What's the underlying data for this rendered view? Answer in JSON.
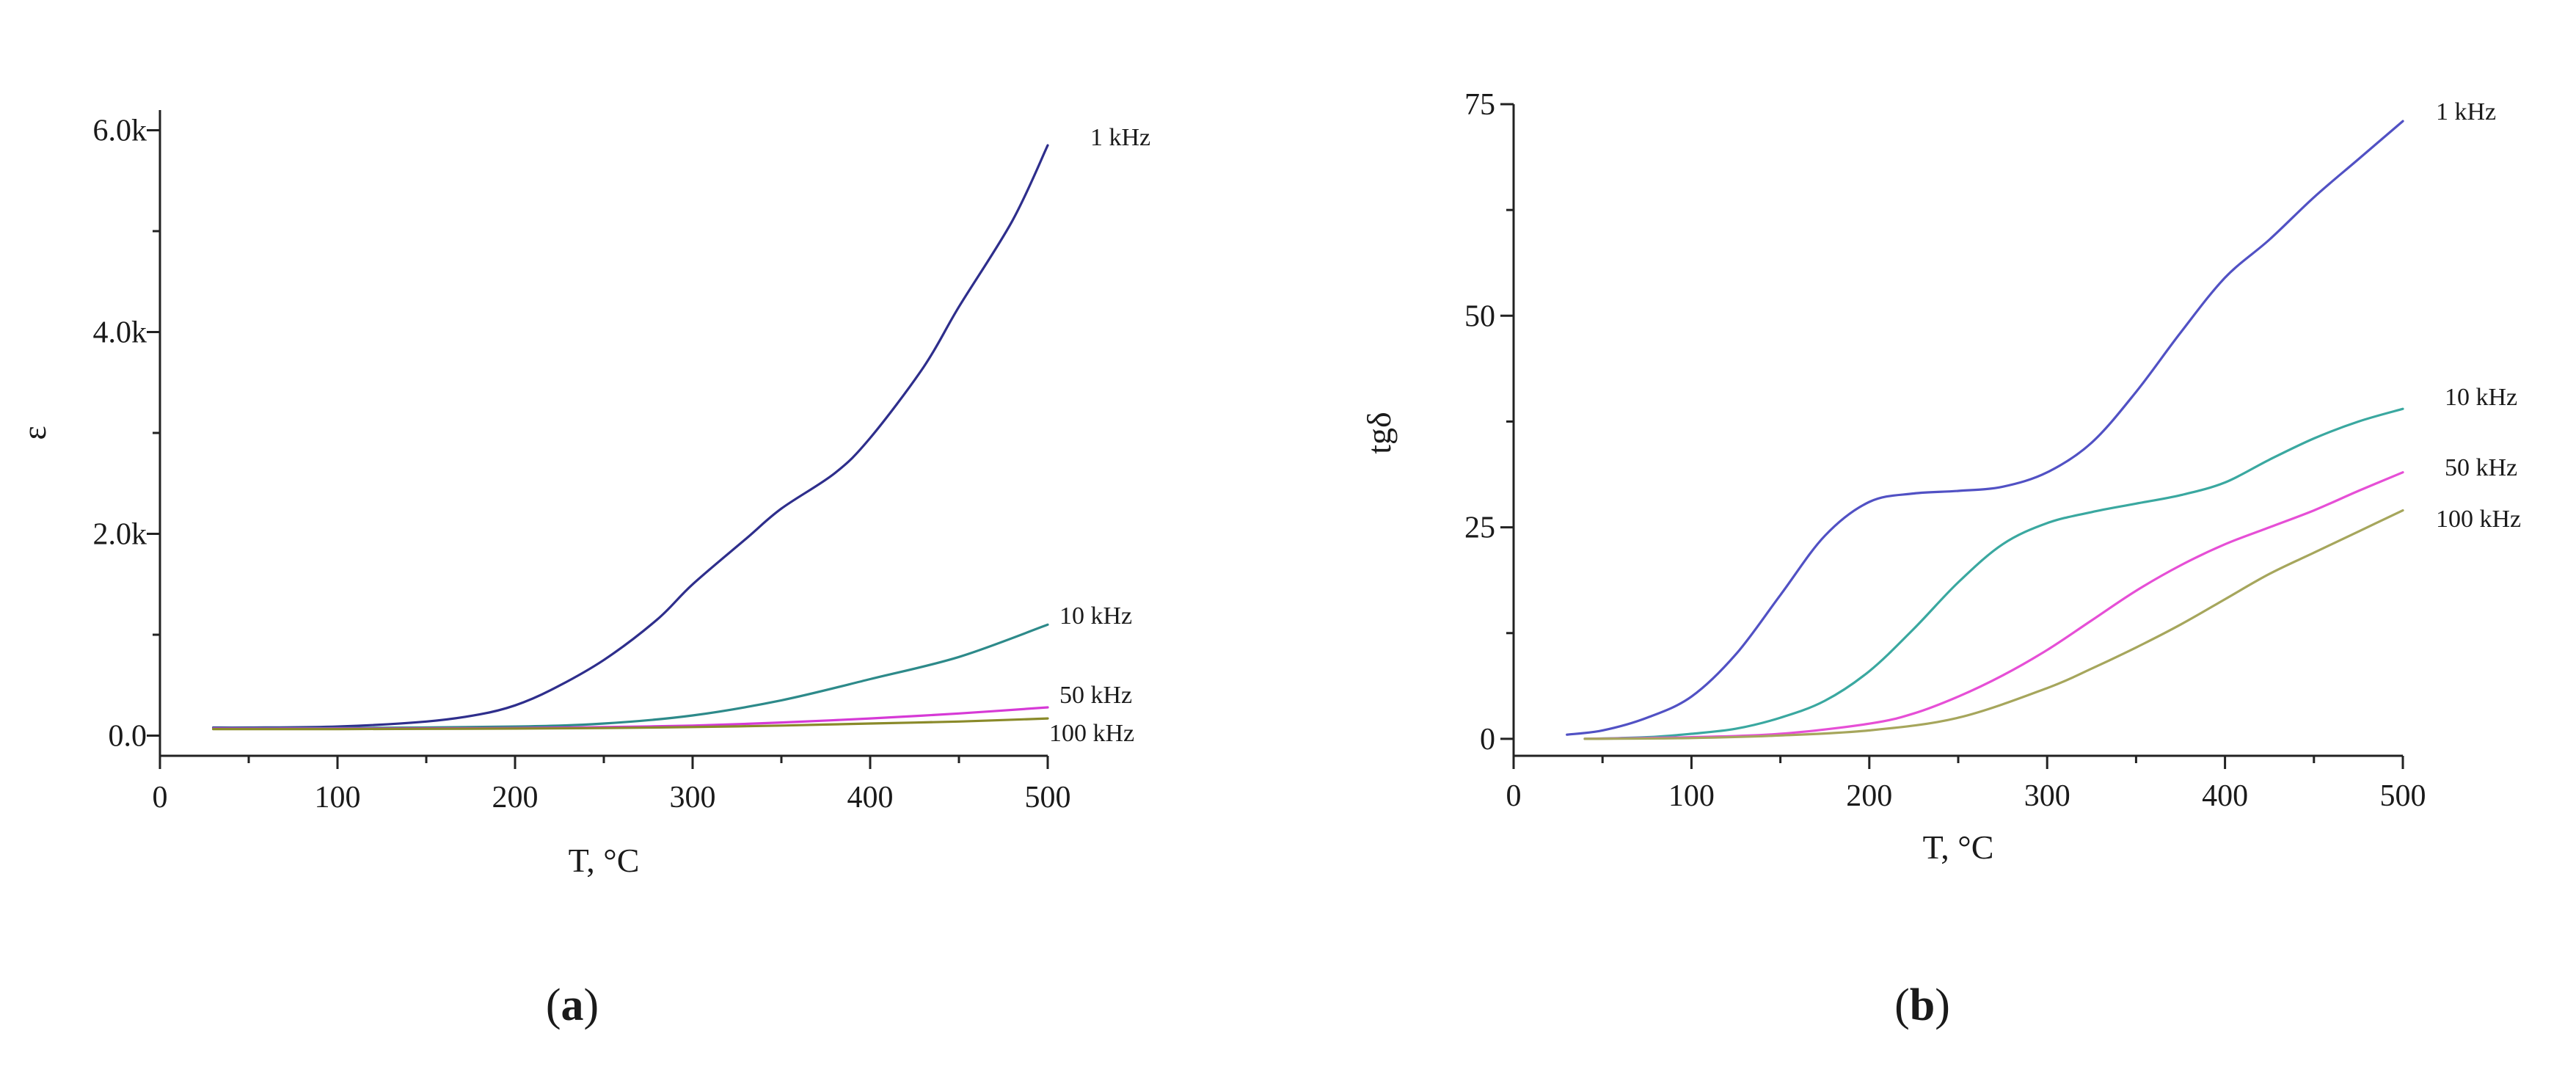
{
  "chart_data": [
    {
      "type": "line",
      "panel_label": "a",
      "xlabel": "T, °C",
      "ylabel": "ε",
      "xlim": [
        0,
        500
      ],
      "ylim": [
        -200,
        6200
      ],
      "xticks": [
        0,
        100,
        200,
        300,
        400,
        500
      ],
      "xtick_labels": [
        "0",
        "100",
        "200",
        "300",
        "400",
        "500"
      ],
      "yticks": [
        0,
        2000,
        4000,
        6000
      ],
      "ytick_labels": [
        "0.0",
        "2.0k",
        "4.0k",
        "6.0k"
      ],
      "series": [
        {
          "name": "1 kHz",
          "color": "#2e2e8c",
          "x": [
            30,
            50,
            100,
            150,
            180,
            200,
            220,
            250,
            280,
            300,
            330,
            350,
            380,
            400,
            430,
            450,
            480,
            500
          ],
          "y": [
            80,
            80,
            90,
            140,
            210,
            300,
            450,
            750,
            1150,
            1500,
            1950,
            2250,
            2600,
            2950,
            3650,
            4250,
            5100,
            5850
          ]
        },
        {
          "name": "10 kHz",
          "color": "#2d8a8a",
          "x": [
            30,
            100,
            200,
            250,
            300,
            350,
            400,
            450,
            500
          ],
          "y": [
            75,
            75,
            90,
            120,
            200,
            350,
            560,
            780,
            1100
          ]
        },
        {
          "name": "50 kHz",
          "color": "#d63ad6",
          "x": [
            30,
            100,
            200,
            250,
            300,
            350,
            400,
            450,
            500
          ],
          "y": [
            70,
            70,
            75,
            85,
            100,
            130,
            170,
            220,
            280
          ]
        },
        {
          "name": "100 kHz",
          "color": "#8a8a2a",
          "x": [
            30,
            100,
            200,
            250,
            300,
            350,
            400,
            450,
            500
          ],
          "y": [
            65,
            65,
            70,
            75,
            85,
            100,
            120,
            140,
            170
          ]
        }
      ]
    },
    {
      "type": "line",
      "panel_label": "b",
      "xlabel": "T, °C",
      "ylabel": "tgδ",
      "xlim": [
        0,
        500
      ],
      "ylim": [
        -2,
        75
      ],
      "xticks": [
        0,
        100,
        200,
        300,
        400,
        500
      ],
      "xtick_labels": [
        "0",
        "100",
        "200",
        "300",
        "400",
        "500"
      ],
      "yticks": [
        0,
        25,
        50,
        75
      ],
      "ytick_labels": [
        "0",
        "25",
        "50",
        "75"
      ],
      "series": [
        {
          "name": "1 kHz",
          "color": "#5151c4",
          "x": [
            30,
            50,
            75,
            100,
            125,
            150,
            175,
            200,
            225,
            250,
            275,
            300,
            325,
            350,
            375,
            400,
            425,
            450,
            475,
            500
          ],
          "y": [
            0.5,
            1,
            2.5,
            5,
            10,
            17,
            24,
            28,
            29,
            29.3,
            29.8,
            31.5,
            35,
            41,
            48,
            54.5,
            59,
            64,
            68.5,
            73
          ]
        },
        {
          "name": "10 kHz",
          "color": "#3aa8a0",
          "x": [
            40,
            75,
            100,
            125,
            150,
            175,
            200,
            225,
            250,
            275,
            300,
            325,
            350,
            375,
            400,
            425,
            450,
            475,
            500
          ],
          "y": [
            0,
            0.2,
            0.6,
            1.2,
            2.5,
            4.5,
            8,
            13,
            18.5,
            23,
            25.5,
            26.8,
            27.8,
            28.8,
            30.3,
            33,
            35.5,
            37.5,
            39
          ]
        },
        {
          "name": "50 kHz",
          "color": "#e64fd6",
          "x": [
            40,
            100,
            150,
            200,
            225,
            250,
            275,
            300,
            325,
            350,
            375,
            400,
            425,
            450,
            475,
            500
          ],
          "y": [
            0,
            0.2,
            0.6,
            1.8,
            3,
            5,
            7.5,
            10.5,
            14,
            17.5,
            20.5,
            23,
            25,
            27,
            29.3,
            31.5
          ]
        },
        {
          "name": "100 kHz",
          "color": "#a6a65c",
          "x": [
            40,
            100,
            150,
            200,
            250,
            300,
            325,
            350,
            375,
            400,
            425,
            450,
            475,
            500
          ],
          "y": [
            0,
            0.1,
            0.4,
            1,
            2.5,
            6,
            8.3,
            10.8,
            13.5,
            16.5,
            19.5,
            22,
            24.5,
            27
          ]
        }
      ]
    }
  ]
}
